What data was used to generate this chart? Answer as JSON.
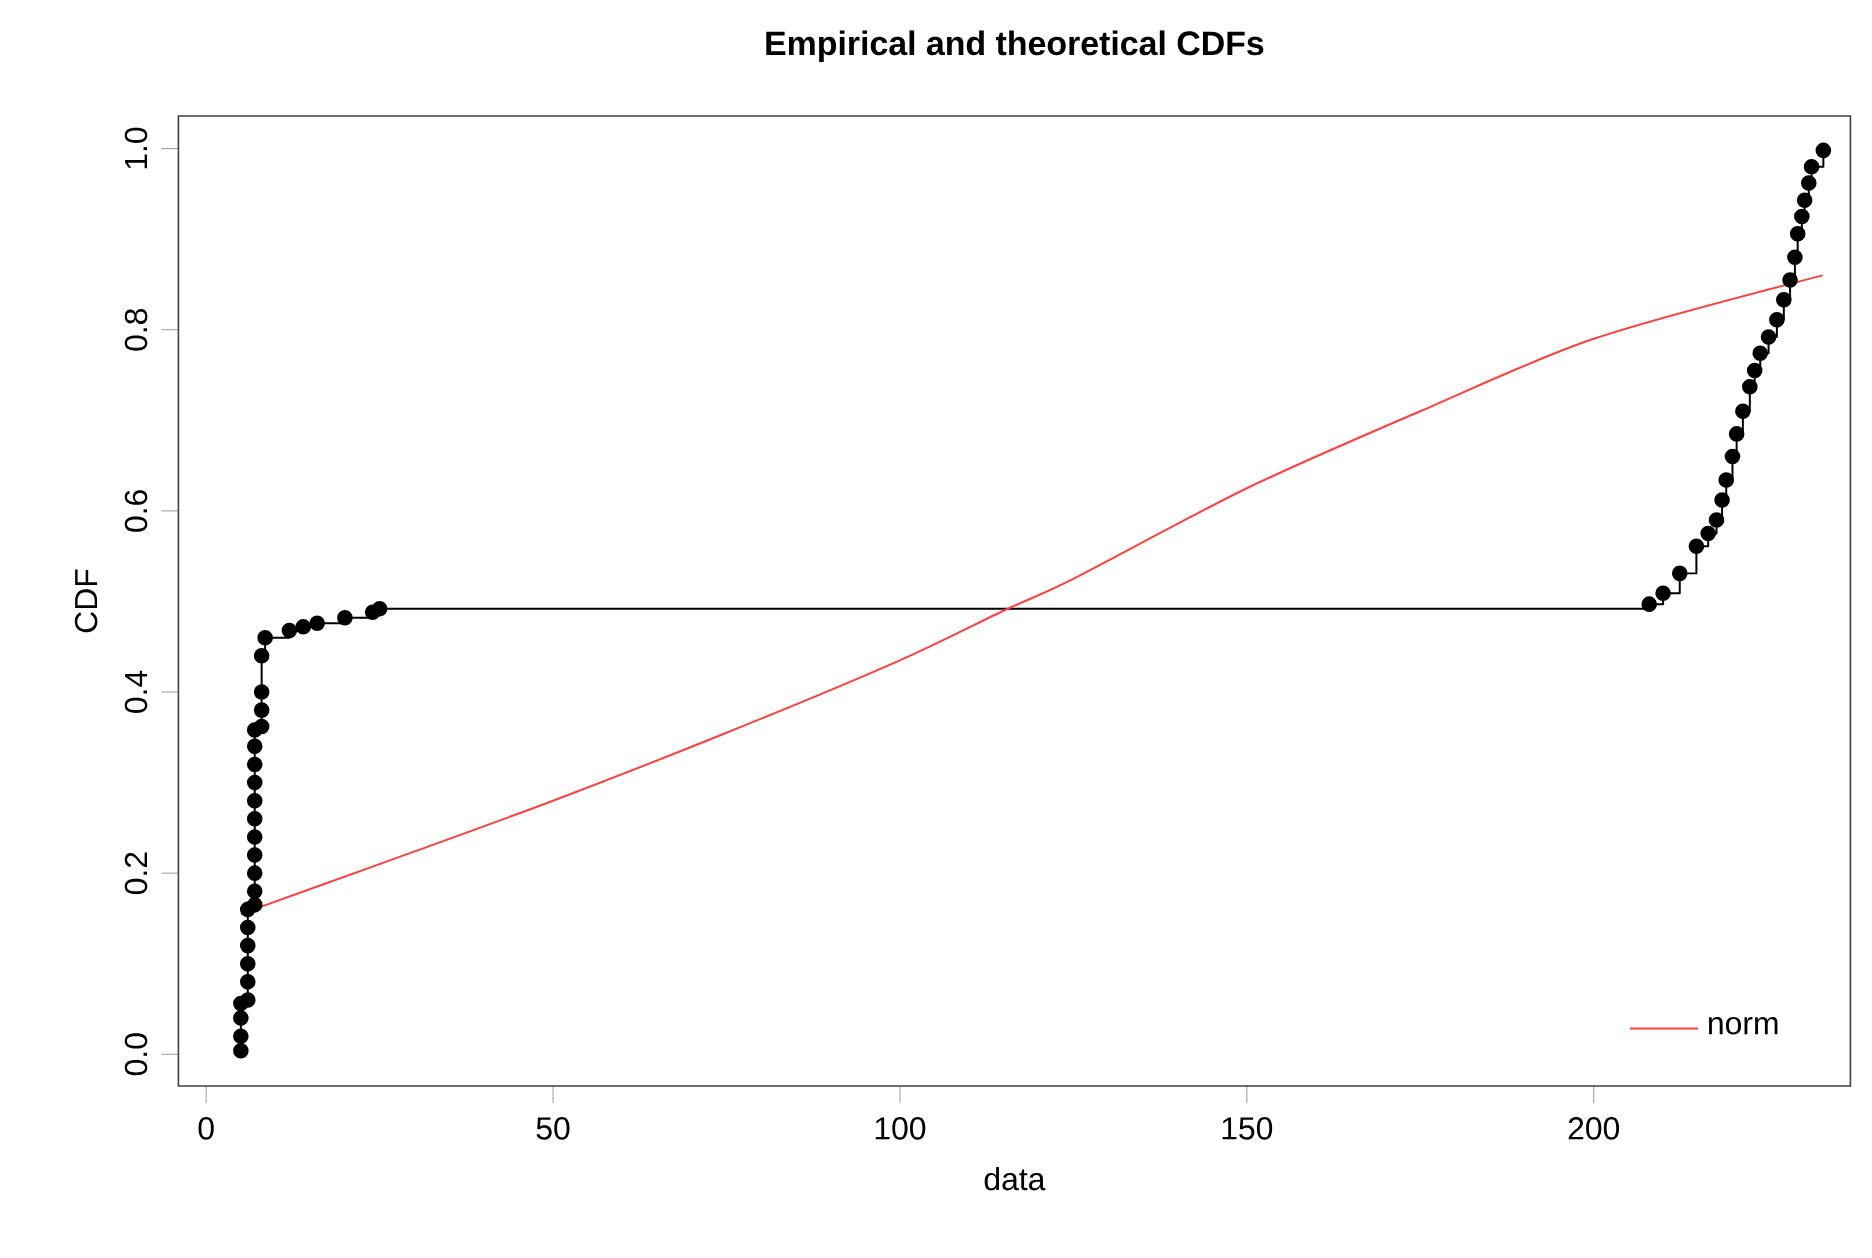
{
  "chart_data": {
    "type": "line",
    "title": "Empirical and theoretical CDFs",
    "xlabel": "data",
    "ylabel": "CDF",
    "xlim": [
      -4,
      237
    ],
    "ylim": [
      -0.035,
      1.036
    ],
    "xticks": [
      0,
      50,
      100,
      150,
      200
    ],
    "yticks": [
      {
        "value": 0,
        "label": "0.0"
      },
      0.2,
      0.4,
      0.6,
      0.8,
      {
        "value": 1,
        "label": "1.0"
      }
    ],
    "legend": "bottom right",
    "grid": false,
    "series": [
      {
        "type": "step",
        "color": "#000000",
        "marker": "circle",
        "x": [
          5,
          5,
          5,
          5,
          6,
          6,
          6,
          6,
          6,
          6,
          7,
          7,
          7,
          7,
          7,
          7,
          7,
          7,
          7,
          7,
          7,
          8,
          8,
          8,
          8,
          8.5,
          12,
          14,
          16,
          20,
          24,
          25,
          208,
          210,
          212.4,
          214.8,
          216.5,
          217.7,
          218.5,
          219.1,
          220,
          220.6,
          221.5,
          222.5,
          223.2,
          224,
          225.2,
          226.4,
          227.4,
          228.3,
          229,
          229.4,
          230,
          230.4,
          231,
          231.4,
          233.1
        ],
        "values": [
          0.004,
          0.02,
          0.04,
          0.056,
          0.06,
          0.08,
          0.1,
          0.12,
          0.14,
          0.16,
          0.165,
          0.18,
          0.2,
          0.22,
          0.24,
          0.26,
          0.28,
          0.3,
          0.32,
          0.34,
          0.358,
          0.362,
          0.38,
          0.4,
          0.44,
          0.46,
          0.468,
          0.472,
          0.476,
          0.482,
          0.488,
          0.492,
          0.497,
          0.509,
          0.531,
          0.561,
          0.575,
          0.59,
          0.612,
          0.634,
          0.66,
          0.685,
          0.71,
          0.737,
          0.755,
          0.774,
          0.792,
          0.811,
          0.833,
          0.855,
          0.88,
          0.906,
          0.925,
          0.943,
          0.962,
          0.98,
          0.998
        ]
      },
      {
        "name": "norm",
        "color": "#ff4040",
        "marker": "none",
        "x": [
          5,
          25,
          50,
          75,
          100,
          115,
          125,
          150,
          175,
          200,
          233
        ],
        "values": [
          0.155,
          0.21,
          0.28,
          0.355,
          0.435,
          0.49,
          0.525,
          0.625,
          0.71,
          0.79,
          0.86
        ]
      }
    ]
  }
}
